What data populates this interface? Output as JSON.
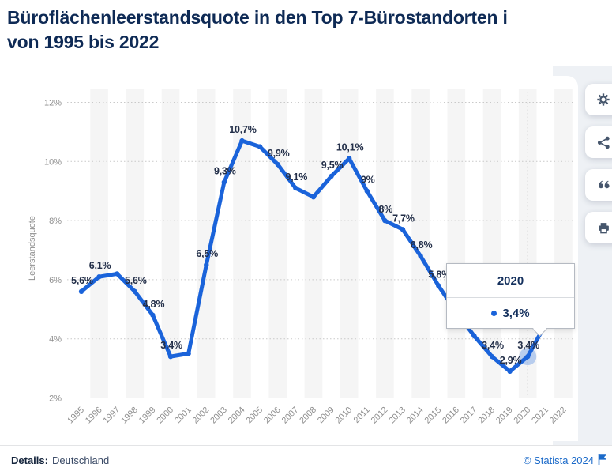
{
  "header": {
    "title_line1": "Büroflächenleerstandsquote in den Top 7-Bürostandorten i",
    "title_line2": "von 1995 bis 2022"
  },
  "chart_data": {
    "type": "line",
    "title": "Büroflächenleerstandsquote in den Top 7-Bürostandorten von 1995 bis 2022",
    "ylabel": "Leerstandsquote",
    "xlabel": "",
    "x": [
      1995,
      1996,
      1997,
      1998,
      1999,
      2000,
      2001,
      2002,
      2003,
      2004,
      2005,
      2006,
      2007,
      2008,
      2009,
      2010,
      2011,
      2012,
      2013,
      2014,
      2015,
      2016,
      2017,
      2018,
      2019,
      2020,
      2021,
      2022
    ],
    "values": [
      5.6,
      6.1,
      6.2,
      5.6,
      4.8,
      3.4,
      3.5,
      6.5,
      9.3,
      10.7,
      10.5,
      9.9,
      9.1,
      8.8,
      9.5,
      10.1,
      9.0,
      8.0,
      7.7,
      6.8,
      5.8,
      4.9,
      4.1,
      3.4,
      2.9,
      3.4,
      4.5,
      4.9
    ],
    "point_labels": [
      "5,6%",
      "6,1%",
      null,
      "5,6%",
      "4,8%",
      "3,4%",
      null,
      "6,5%",
      "9,3%",
      "10,7%",
      null,
      "9,9%",
      "9,1%",
      null,
      "9,5%",
      "10,1%",
      "9%",
      "8%",
      "7,7%",
      "6,8%",
      "5,8%",
      null,
      null,
      "3,4%",
      "2,9%",
      "3,4%",
      null,
      null
    ],
    "ytick_values": [
      2,
      4,
      6,
      8,
      10,
      12
    ],
    "ytick_labels": [
      "2%",
      "4%",
      "6%",
      "8%",
      "10%",
      "12%"
    ],
    "ylim": [
      2,
      12
    ],
    "grid": "dotted-horizontal",
    "legend": "none",
    "highlight": {
      "x": 2020,
      "value": 3.4
    }
  },
  "tooltip": {
    "title": "2020",
    "value_label": "3,4%"
  },
  "action_buttons": [
    {
      "name": "settings",
      "icon": "gear-icon"
    },
    {
      "name": "share",
      "icon": "share-icon"
    },
    {
      "name": "cite",
      "icon": "quote-icon"
    },
    {
      "name": "print",
      "icon": "printer-icon"
    }
  ],
  "footer": {
    "details_label": "Details:",
    "details_value": "Deutschland",
    "copyright": "© Statista 2024"
  },
  "colors": {
    "line": "#1a63da",
    "halo": "rgba(26,99,218,0.28)",
    "data_label": "#232f49",
    "axis_text": "#8f8f8f",
    "grid": "#c9c9c9",
    "stripe": "#f5f5f5",
    "title_navy": "#0e2a55",
    "link_blue": "#1b6ac9",
    "icon_slate": "#46566c"
  }
}
